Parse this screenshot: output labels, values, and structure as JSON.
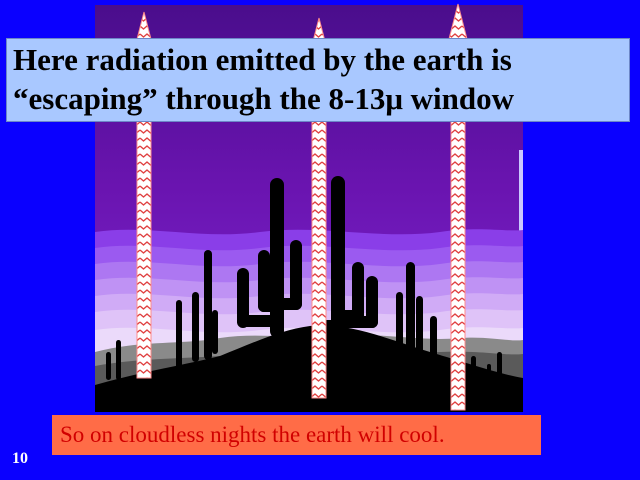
{
  "slide": {
    "title_lines": [
      "Here radiation emitted by the earth is",
      "“escaping” through the 8-13μ window"
    ],
    "caption": "So on cloudless nights the earth will cool.",
    "slide_number": "10"
  },
  "colors": {
    "background": "#0a00ff",
    "title_box": "#a9c8ff",
    "caption_box": "#ff6c47",
    "caption_text": "#d10000",
    "sky_top": "#5a0e9a",
    "ground": "#000000",
    "arrow_zigzag": "#e04040"
  },
  "diagram": {
    "elements": [
      "desert-night-sky",
      "saguaro-cactus-silhouettes",
      "upward-radiation-arrows"
    ],
    "arrow_count": 3
  }
}
